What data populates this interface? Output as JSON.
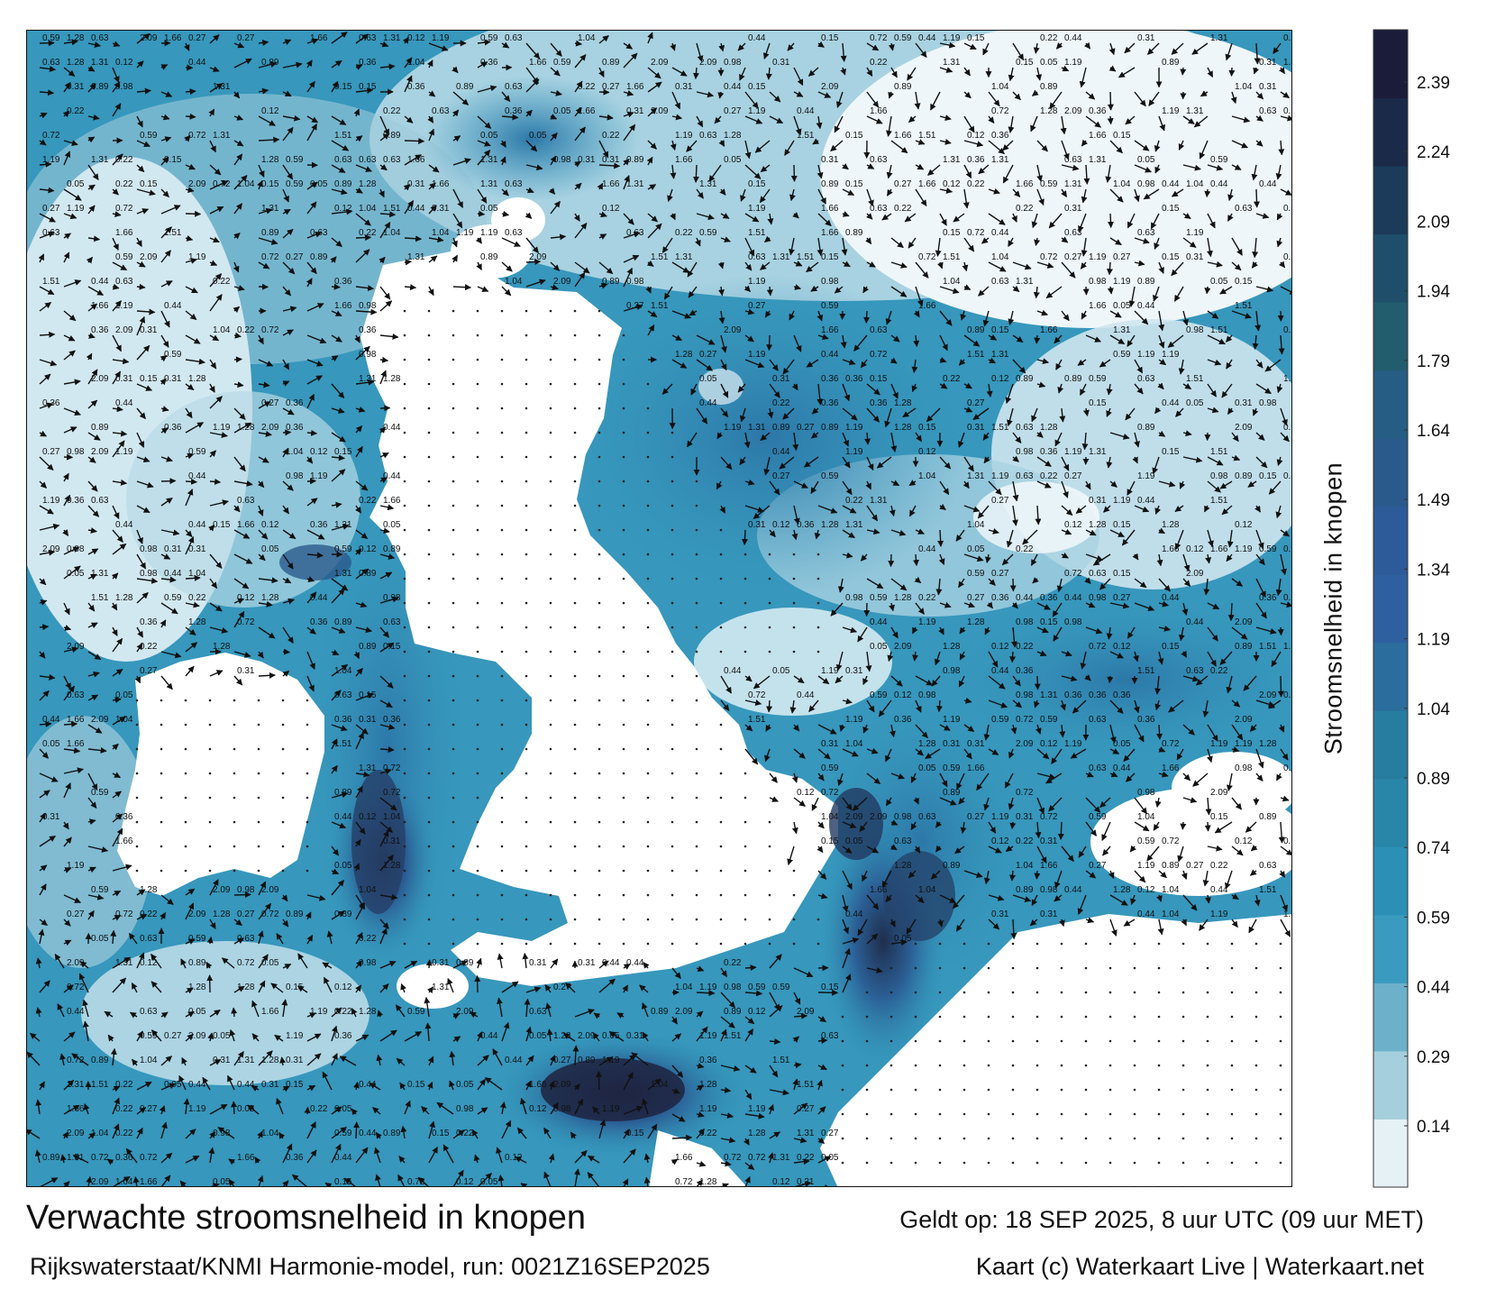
{
  "map": {
    "title": "Verwachte stroomsnelheid in knopen",
    "model_run": "Rijkswaterstaat/KNMI Harmonie-model, run: 0021Z16SEP2025",
    "valid_at": "Geldt op: 18 SEP 2025, 8 uur UTC (09 uur MET)",
    "credits": "Kaart (c) Waterkaart Live | Waterkaart.net",
    "colors": {
      "land": "#ffffff",
      "low": "#e9f3f7",
      "mid": "#2f93b8",
      "high": "#2a5d98",
      "max": "#1c1c3a"
    },
    "sample_values": [
      "0.15",
      "0.22",
      "0.31",
      "0.44",
      "0.59",
      "0.72",
      "0.89",
      "1.04",
      "1.19",
      "1.31",
      "1.51",
      "2.09",
      "0.05",
      "0.12",
      "0.36",
      "0.63",
      "0.98",
      "1.28",
      "1.66",
      "0.27"
    ]
  },
  "legend": {
    "title": "Stroomsnelheid in knopen",
    "ticks": [
      "2.39",
      "2.24",
      "2.09",
      "1.94",
      "1.79",
      "1.64",
      "1.49",
      "1.34",
      "1.19",
      "1.04",
      "0.89",
      "0.74",
      "0.59",
      "0.44",
      "0.29",
      "0.14"
    ],
    "band_colors": [
      "#e6f1f5",
      "#a6cfdd",
      "#6cb0c9",
      "#3a9bbf",
      "#2b8fb6",
      "#2a86a8",
      "#277d9f",
      "#2b6d9c",
      "#2e60a0",
      "#2d5a98",
      "#2a5a8c",
      "#255d84",
      "#225d6e",
      "#1f4e6a",
      "#1c3a5a",
      "#1a2a48",
      "#1b1c3a"
    ]
  }
}
